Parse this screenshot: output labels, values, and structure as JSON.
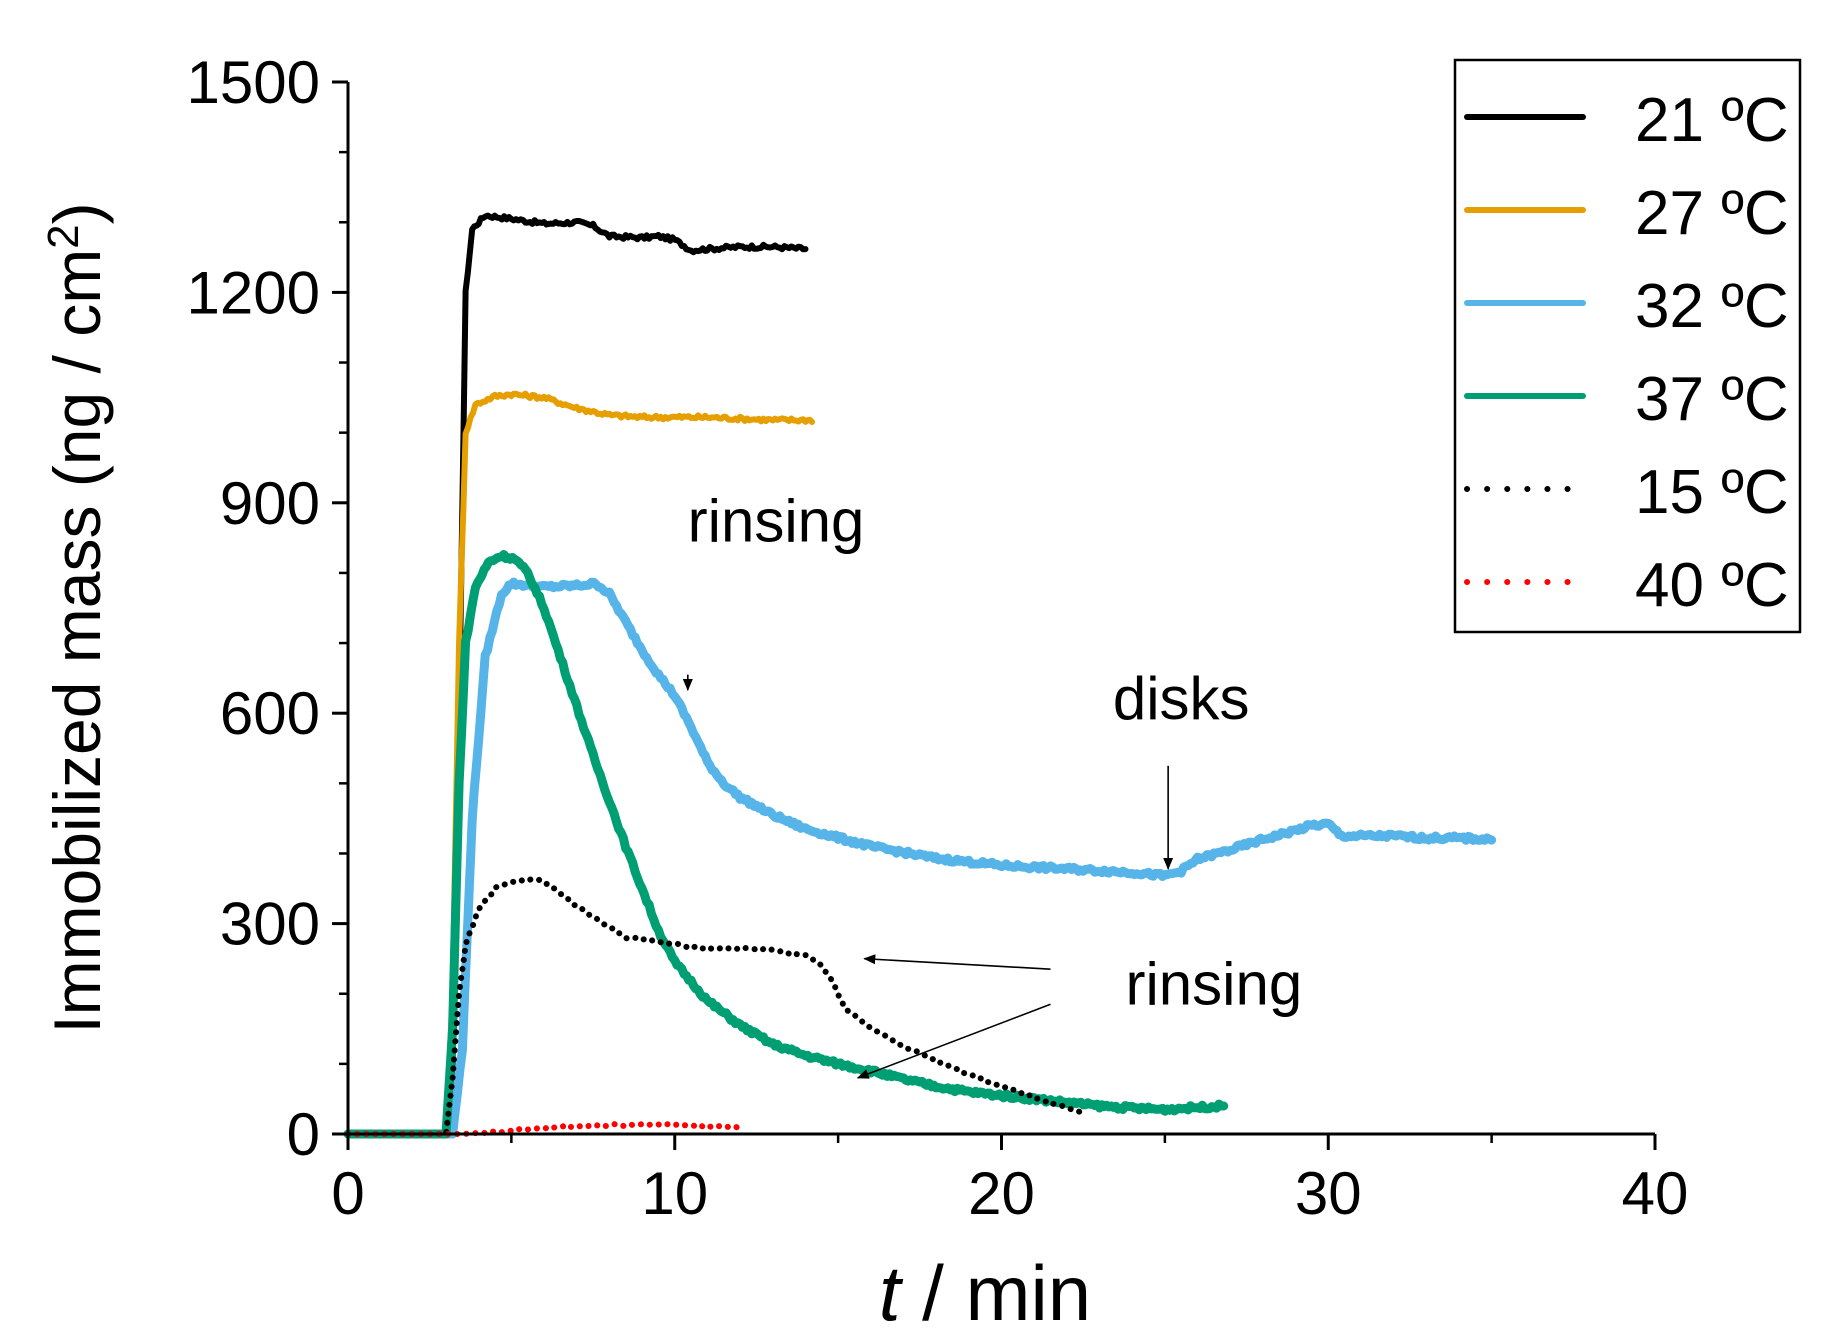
{
  "chart_data": {
    "type": "line",
    "title": "",
    "xlabel_italic": "t",
    "xlabel_rest": " / min",
    "ylabel_main": "Immobilized mass (ng / cm",
    "ylabel_sup": "2",
    "ylabel_close": ")",
    "xlim": [
      0,
      40
    ],
    "ylim": [
      0,
      1500
    ],
    "x_ticks": [
      0,
      10,
      20,
      30,
      40
    ],
    "y_ticks": [
      0,
      300,
      600,
      900,
      1200,
      1500
    ],
    "x_tick_labels": [
      "0",
      "10",
      "20",
      "30",
      "40"
    ],
    "y_tick_labels": [
      "0",
      "300",
      "600",
      "900",
      "1200",
      "1500"
    ],
    "grid": false,
    "legend_position": "top-right",
    "series": [
      {
        "name": "21 ºC",
        "style": "solid",
        "color": "#000000",
        "points": [
          [
            0,
            0
          ],
          [
            3.0,
            0
          ],
          [
            3.2,
            100
          ],
          [
            3.4,
            600
          ],
          [
            3.6,
            1200
          ],
          [
            3.8,
            1290
          ],
          [
            4.2,
            1310
          ],
          [
            5,
            1305
          ],
          [
            6,
            1298
          ],
          [
            7,
            1300
          ],
          [
            7.5,
            1295
          ],
          [
            8,
            1280
          ],
          [
            9,
            1278
          ],
          [
            9.5,
            1280
          ],
          [
            10,
            1275
          ],
          [
            10.5,
            1260
          ],
          [
            11,
            1262
          ],
          [
            12,
            1265
          ],
          [
            13,
            1265
          ],
          [
            14,
            1262
          ]
        ]
      },
      {
        "name": "27 ºC",
        "style": "solid",
        "color": "#E69F00",
        "points": [
          [
            0,
            0
          ],
          [
            3.0,
            0
          ],
          [
            3.2,
            200
          ],
          [
            3.4,
            700
          ],
          [
            3.6,
            1000
          ],
          [
            3.9,
            1040
          ],
          [
            4.5,
            1052
          ],
          [
            5,
            1055
          ],
          [
            6,
            1050
          ],
          [
            7,
            1035
          ],
          [
            8,
            1025
          ],
          [
            9,
            1022
          ],
          [
            10,
            1022
          ],
          [
            11,
            1022
          ],
          [
            12,
            1020
          ],
          [
            13,
            1018
          ],
          [
            14,
            1018
          ],
          [
            14.2,
            1018
          ]
        ]
      },
      {
        "name": "32 ºC",
        "style": "solid",
        "color": "#56B4E9",
        "points": [
          [
            0,
            0
          ],
          [
            3.2,
            0
          ],
          [
            3.5,
            120
          ],
          [
            3.8,
            450
          ],
          [
            4.2,
            680
          ],
          [
            4.7,
            770
          ],
          [
            5,
            785
          ],
          [
            6,
            780
          ],
          [
            7,
            782
          ],
          [
            7.6,
            785
          ],
          [
            8,
            770
          ],
          [
            8.5,
            730
          ],
          [
            9,
            690
          ],
          [
            9.5,
            655
          ],
          [
            10,
            625
          ],
          [
            10.5,
            580
          ],
          [
            11,
            530
          ],
          [
            11.5,
            500
          ],
          [
            12,
            480
          ],
          [
            13,
            455
          ],
          [
            14,
            435
          ],
          [
            16,
            410
          ],
          [
            18,
            393
          ],
          [
            20,
            383
          ],
          [
            22,
            378
          ],
          [
            24,
            373
          ],
          [
            25,
            368
          ],
          [
            25.5,
            375
          ],
          [
            26,
            392
          ],
          [
            27,
            405
          ],
          [
            28,
            420
          ],
          [
            29,
            433
          ],
          [
            29.5,
            440
          ],
          [
            30,
            442
          ],
          [
            30.4,
            425
          ],
          [
            31,
            425
          ],
          [
            32,
            425
          ],
          [
            33,
            422
          ],
          [
            34,
            422
          ],
          [
            35,
            420
          ]
        ]
      },
      {
        "name": "37 ºC",
        "style": "solid",
        "color": "#009E73",
        "points": [
          [
            0,
            0
          ],
          [
            3.0,
            0
          ],
          [
            3.2,
            150
          ],
          [
            3.4,
            500
          ],
          [
            3.6,
            700
          ],
          [
            3.9,
            780
          ],
          [
            4.3,
            815
          ],
          [
            4.7,
            825
          ],
          [
            5.1,
            820
          ],
          [
            5.5,
            800
          ],
          [
            6,
            750
          ],
          [
            6.5,
            680
          ],
          [
            7,
            610
          ],
          [
            7.5,
            540
          ],
          [
            8,
            475
          ],
          [
            8.5,
            410
          ],
          [
            9,
            350
          ],
          [
            9.5,
            290
          ],
          [
            10,
            245
          ],
          [
            11,
            190
          ],
          [
            12,
            155
          ],
          [
            13,
            128
          ],
          [
            14,
            112
          ],
          [
            15,
            100
          ],
          [
            16,
            90
          ],
          [
            17,
            78
          ],
          [
            18,
            68
          ],
          [
            19,
            60
          ],
          [
            20,
            55
          ],
          [
            21,
            50
          ],
          [
            22,
            45
          ],
          [
            23,
            40
          ],
          [
            24,
            37
          ],
          [
            25,
            35
          ],
          [
            26,
            38
          ],
          [
            26.8,
            40
          ]
        ]
      },
      {
        "name": "15 ºC",
        "style": "dotted",
        "color": "#000000",
        "points": [
          [
            0,
            0
          ],
          [
            3.0,
            0
          ],
          [
            3.2,
            80
          ],
          [
            3.4,
            200
          ],
          [
            3.6,
            270
          ],
          [
            4,
            320
          ],
          [
            4.5,
            350
          ],
          [
            5,
            360
          ],
          [
            5.7,
            365
          ],
          [
            6.3,
            350
          ],
          [
            7,
            325
          ],
          [
            8,
            295
          ],
          [
            8.5,
            280
          ],
          [
            9,
            278
          ],
          [
            10,
            270
          ],
          [
            11,
            265
          ],
          [
            12,
            265
          ],
          [
            13,
            262
          ],
          [
            14,
            255
          ],
          [
            14.5,
            240
          ],
          [
            14.8,
            220
          ],
          [
            15.2,
            180
          ],
          [
            16,
            150
          ],
          [
            17,
            125
          ],
          [
            18,
            105
          ],
          [
            19,
            85
          ],
          [
            20,
            68
          ],
          [
            21,
            52
          ],
          [
            22,
            38
          ],
          [
            22.5,
            30
          ]
        ]
      },
      {
        "name": "40 ºC",
        "style": "dotted",
        "color": "#FF0000",
        "points": [
          [
            0,
            0
          ],
          [
            3.5,
            0
          ],
          [
            4.5,
            3
          ],
          [
            5.5,
            7
          ],
          [
            6.5,
            10
          ],
          [
            7.5,
            12
          ],
          [
            8.5,
            13
          ],
          [
            9.5,
            14
          ],
          [
            10.5,
            12
          ],
          [
            11.5,
            10
          ],
          [
            12,
            10
          ]
        ]
      }
    ],
    "annotations": [
      {
        "text": "rinsing",
        "label_at": [
          13.1,
          845
        ],
        "arrow_from": [
          10.4,
          655
        ],
        "arrow_to": [
          10.4,
          633
        ]
      },
      {
        "text": "disks",
        "label_at": [
          25.5,
          592
        ],
        "arrow_from": [
          25.1,
          525
        ],
        "arrow_to": [
          25.1,
          378
        ]
      },
      {
        "text": "rinsing",
        "label_at": [
          26.5,
          185
        ],
        "arrow_from": [
          21.5,
          235
        ],
        "arrow_to": [
          15.8,
          250
        ]
      },
      {
        "text": "rinsing",
        "label_at": null,
        "arrow_from": [
          21.5,
          185
        ],
        "arrow_to": [
          15.6,
          80
        ]
      }
    ]
  }
}
